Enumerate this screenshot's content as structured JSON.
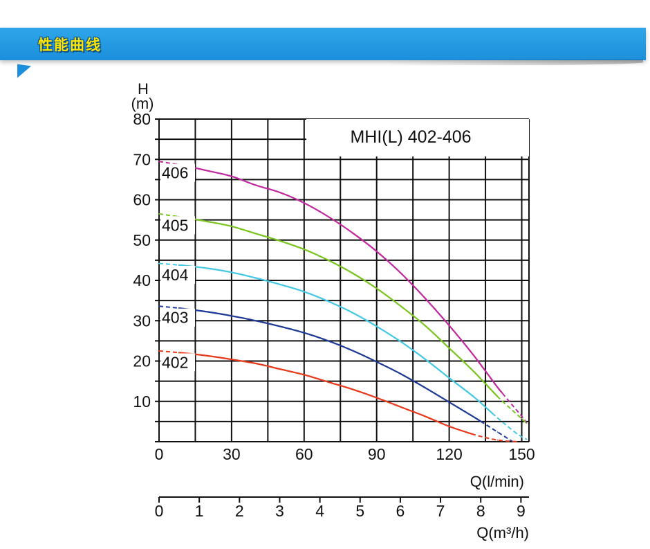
{
  "banner": {
    "title": "性能曲线"
  },
  "chart_data": {
    "type": "line",
    "title": "MHI(L) 402-406",
    "y_unit_label_top": "H",
    "y_unit_label_bottom": "(m)",
    "ylim": [
      0,
      80
    ],
    "yticks": [
      "10",
      "20",
      "30",
      "40",
      "50",
      "60",
      "70",
      "80"
    ],
    "x_primary": {
      "label": "Q(l/min)",
      "lim": [
        0,
        153
      ],
      "ticks": [
        "0",
        "30",
        "60",
        "90",
        "120",
        "150"
      ]
    },
    "x_secondary": {
      "label": "Q(m³/h)",
      "lim": [
        0,
        9.2
      ],
      "ticks": [
        "0",
        "1",
        "2",
        "3",
        "4",
        "5",
        "6",
        "7",
        "8",
        "9"
      ]
    },
    "series": [
      {
        "name": "406",
        "color": "#c0299e",
        "x": [
          0,
          10,
          20,
          30,
          40,
          50,
          60,
          70,
          80,
          90,
          100,
          110,
          120,
          130,
          140,
          150,
          152
        ],
        "y": [
          69.5,
          68.5,
          67.2,
          65.8,
          63.6,
          61.8,
          59.2,
          55.8,
          51.8,
          47.2,
          41.8,
          35.6,
          28.8,
          21.5,
          13.5,
          6.3,
          4.6
        ],
        "solid_from": 6,
        "solid_to": 142
      },
      {
        "name": "405",
        "color": "#7ac41f",
        "x": [
          0,
          10,
          20,
          30,
          40,
          50,
          60,
          70,
          80,
          90,
          100,
          110,
          120,
          130,
          140,
          150,
          152
        ],
        "y": [
          56.5,
          55.6,
          54.6,
          53.4,
          51.6,
          49.8,
          47.7,
          45.0,
          41.8,
          38.0,
          33.6,
          28.8,
          23.2,
          17.5,
          11.2,
          5.7,
          4.6
        ],
        "solid_from": 6,
        "solid_to": 140
      },
      {
        "name": "404",
        "color": "#46c8e4",
        "x": [
          0,
          10,
          20,
          30,
          40,
          50,
          60,
          70,
          80,
          90,
          100,
          110,
          120,
          130,
          140,
          148,
          152
        ],
        "y": [
          44.2,
          43.7,
          43.0,
          42.0,
          40.6,
          39.0,
          37.2,
          34.8,
          32.0,
          28.6,
          24.8,
          20.5,
          15.8,
          11.2,
          5.9,
          2.0,
          0.6
        ],
        "solid_from": 8,
        "solid_to": 138
      },
      {
        "name": "403",
        "color": "#1e3a96",
        "x": [
          0,
          10,
          20,
          30,
          40,
          50,
          60,
          70,
          80,
          90,
          100,
          110,
          120,
          130,
          140,
          146
        ],
        "y": [
          33.6,
          33.0,
          32.2,
          31.2,
          30.0,
          28.6,
          27.0,
          25.0,
          22.6,
          19.8,
          16.8,
          13.4,
          9.8,
          6.2,
          2.4,
          0.1
        ],
        "solid_from": 8,
        "solid_to": 134
      },
      {
        "name": "402",
        "color": "#e8391c",
        "x": [
          0,
          10,
          20,
          30,
          40,
          50,
          60,
          70,
          80,
          90,
          100,
          110,
          120,
          130,
          140,
          148
        ],
        "y": [
          22.5,
          22.0,
          21.3,
          20.4,
          19.4,
          18.0,
          16.6,
          14.8,
          13.0,
          10.9,
          8.6,
          6.3,
          3.8,
          1.8,
          0.4,
          0.0
        ],
        "solid_from": 8,
        "solid_to": 130
      }
    ]
  }
}
